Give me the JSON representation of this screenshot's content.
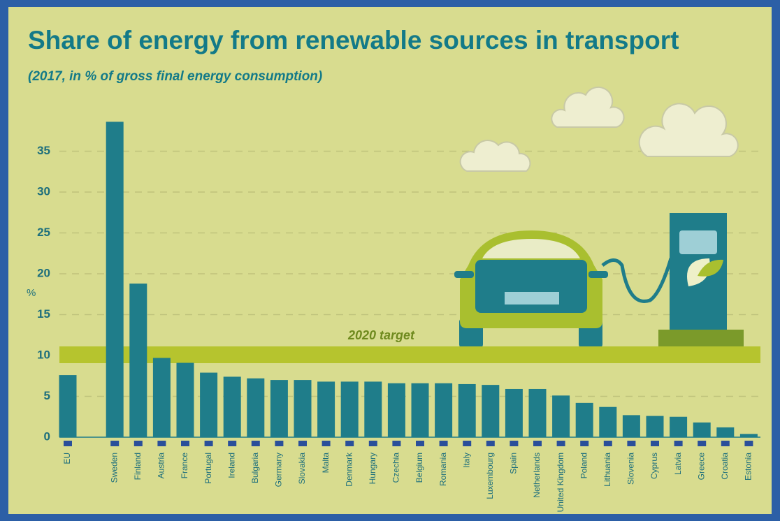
{
  "chart_data": {
    "type": "bar",
    "title": "Share of energy from renewable sources in transport",
    "subtitle": "(2017, in % of gross final energy consumption)",
    "y_label": "%",
    "categories": [
      "EU",
      null,
      "Sweden",
      "Finland",
      "Austria",
      "France",
      "Portugal",
      "Ireland",
      "Bulgaria",
      "Germany",
      "Slovakia",
      "Malta",
      "Denmark",
      "Hungary",
      "Czechia",
      "Belgium",
      "Romania",
      "Italy",
      "Luxembourg",
      "Spain",
      "Netherlands",
      "United Kingdom",
      "Poland",
      "Lithuania",
      "Slovenia",
      "Cyprus",
      "Latvia",
      "Greece",
      "Croatia",
      "Estonia"
    ],
    "values": [
      7.6,
      null,
      38.6,
      18.8,
      9.7,
      9.1,
      7.9,
      7.4,
      7.2,
      7.0,
      7.0,
      6.8,
      6.8,
      6.8,
      6.6,
      6.6,
      6.6,
      6.5,
      6.4,
      5.9,
      5.9,
      5.1,
      4.2,
      3.7,
      2.7,
      2.6,
      2.5,
      1.8,
      1.2,
      0.4
    ],
    "color": "#1f7d8a",
    "target": {
      "label": "2020 target",
      "value": 10,
      "color": "#b6c42e"
    },
    "ylim": [
      0,
      40
    ],
    "yticks": [
      0,
      5,
      10,
      15,
      20,
      25,
      30,
      35
    ],
    "grid": true
  }
}
